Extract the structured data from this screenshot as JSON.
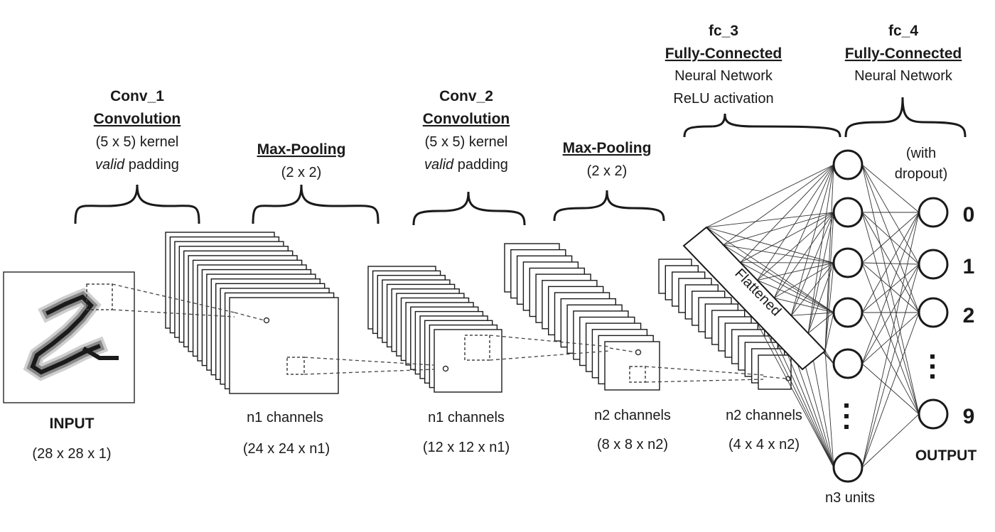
{
  "input": {
    "label": "INPUT",
    "dims": "(28 x 28 x 1)"
  },
  "conv1": {
    "name": "Conv_1",
    "type": "Convolution",
    "kernel": "(5 x 5) kernel",
    "padding_word": "valid",
    "padding_rest": " padding",
    "channels": "n1 channels",
    "dims": "(24 x 24 x n1)"
  },
  "pool1": {
    "type": "Max-Pooling",
    "size": "(2 x 2)",
    "channels": "n1 channels",
    "dims": "(12 x 12 x n1)"
  },
  "conv2": {
    "name": "Conv_2",
    "type": "Convolution",
    "kernel": "(5 x 5) kernel",
    "padding_word": "valid",
    "padding_rest": " padding",
    "channels": "n2 channels",
    "dims": "(8 x 8 x n2)"
  },
  "pool2": {
    "type": "Max-Pooling",
    "size": "(2 x 2)",
    "channels": "n2 channels",
    "dims": "(4 x 4 x n2)"
  },
  "flatten": {
    "label": "Flattened"
  },
  "fc3": {
    "name": "fc_3",
    "type": "Fully-Connected",
    "line1": "Neural Network",
    "line2": "ReLU activation",
    "units": "n3 units"
  },
  "fc4": {
    "name": "fc_4",
    "type": "Fully-Connected",
    "line1": "Neural Network",
    "dropout1": "(with",
    "dropout2": "dropout)"
  },
  "output": {
    "label": "OUTPUT",
    "classes": [
      "0",
      "1",
      "2",
      "9"
    ]
  }
}
